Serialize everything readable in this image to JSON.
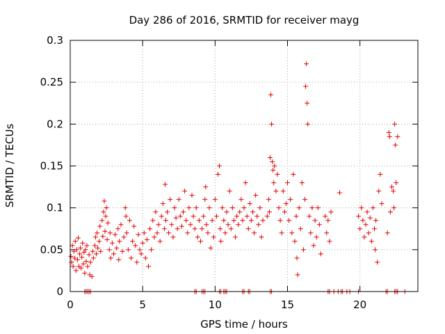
{
  "chart_data": {
    "type": "scatter",
    "title": "Day 286 of 2016, SRMTID for receiver mayg",
    "xlabel": "GPS time / hours",
    "ylabel": "SRMTID / TECUs",
    "xlim": [
      0,
      24
    ],
    "ylim": [
      0,
      0.3
    ],
    "xticks": [
      0,
      5,
      10,
      15,
      20
    ],
    "yticks": [
      0,
      0.05,
      0.1,
      0.15,
      0.2,
      0.25,
      0.3
    ],
    "ytick_labels": [
      "0",
      "0.05",
      "0.1",
      "0.15",
      "0.2",
      "0.25",
      "0.3"
    ],
    "grid": true,
    "marker": "+",
    "color": "#e00000",
    "series": [
      {
        "name": "SRMTID",
        "points": [
          [
            0.05,
            0.042
          ],
          [
            0.1,
            0.035
          ],
          [
            0.15,
            0.055
          ],
          [
            0.2,
            0.03
          ],
          [
            0.25,
            0.048
          ],
          [
            0.3,
            0.04
          ],
          [
            0.35,
            0.06
          ],
          [
            0.4,
            0.025
          ],
          [
            0.45,
            0.05
          ],
          [
            0.5,
            0.038
          ],
          [
            0.55,
            0.064
          ],
          [
            0.6,
            0.03
          ],
          [
            0.65,
            0.045
          ],
          [
            0.7,
            0.052
          ],
          [
            0.75,
            0.028
          ],
          [
            0.8,
            0.041
          ],
          [
            0.85,
            0.058
          ],
          [
            0.9,
            0.033
          ],
          [
            0.95,
            0.047
          ],
          [
            1.0,
            0.022
          ],
          [
            1.05,
            0.05
          ],
          [
            1.1,
            0.036
          ],
          [
            1.15,
            0.055
          ],
          [
            1.2,
            0.03
          ],
          [
            1.3,
            0.044
          ],
          [
            1.35,
            0.02
          ],
          [
            1.4,
            0.035
          ],
          [
            1.5,
            0.018
          ],
          [
            1.55,
            0.048
          ],
          [
            1.6,
            0.04
          ],
          [
            1.7,
            0.055
          ],
          [
            1.75,
            0.065
          ],
          [
            1.8,
            0.045
          ],
          [
            1.85,
            0.07
          ],
          [
            1.9,
            0.052
          ],
          [
            2.0,
            0.06
          ],
          [
            2.05,
            0.078
          ],
          [
            2.1,
            0.048
          ],
          [
            2.2,
            0.085
          ],
          [
            2.25,
            0.066
          ],
          [
            2.3,
            0.095
          ],
          [
            2.35,
            0.108
          ],
          [
            2.4,
            0.072
          ],
          [
            2.45,
            0.09
          ],
          [
            2.5,
            0.1
          ],
          [
            2.55,
            0.062
          ],
          [
            2.6,
            0.082
          ],
          [
            2.7,
            0.05
          ],
          [
            2.75,
            0.07
          ],
          [
            2.8,
            0.04
          ],
          [
            2.9,
            0.058
          ],
          [
            3.0,
            0.045
          ],
          [
            3.1,
            0.068
          ],
          [
            3.2,
            0.052
          ],
          [
            3.3,
            0.075
          ],
          [
            3.35,
            0.038
          ],
          [
            3.4,
            0.06
          ],
          [
            3.5,
            0.08
          ],
          [
            3.6,
            0.048
          ],
          [
            3.7,
            0.065
          ],
          [
            3.8,
            0.1
          ],
          [
            3.85,
            0.09
          ],
          [
            3.9,
            0.07
          ],
          [
            4.0,
            0.05
          ],
          [
            4.1,
            0.085
          ],
          [
            4.2,
            0.04
          ],
          [
            4.3,
            0.06
          ],
          [
            4.4,
            0.078
          ],
          [
            4.5,
            0.055
          ],
          [
            4.6,
            0.035
          ],
          [
            4.7,
            0.068
          ],
          [
            4.8,
            0.05
          ],
          [
            4.9,
            0.045
          ],
          [
            5.0,
            0.058
          ],
          [
            5.1,
            0.07
          ],
          [
            5.2,
            0.04
          ],
          [
            5.3,
            0.062
          ],
          [
            5.4,
            0.03
          ],
          [
            5.5,
            0.075
          ],
          [
            5.6,
            0.05
          ],
          [
            5.7,
            0.085
          ],
          [
            5.8,
            0.065
          ],
          [
            5.9,
            0.095
          ],
          [
            6.0,
            0.07
          ],
          [
            6.1,
            0.08
          ],
          [
            6.2,
            0.06
          ],
          [
            6.3,
            0.09
          ],
          [
            6.4,
            0.105
          ],
          [
            6.5,
            0.075
          ],
          [
            6.55,
            0.128
          ],
          [
            6.6,
            0.085
          ],
          [
            6.7,
            0.095
          ],
          [
            6.8,
            0.07
          ],
          [
            6.9,
            0.11
          ],
          [
            7.0,
            0.08
          ],
          [
            7.1,
            0.065
          ],
          [
            7.2,
            0.1
          ],
          [
            7.3,
            0.088
          ],
          [
            7.4,
            0.075
          ],
          [
            7.5,
            0.11
          ],
          [
            7.6,
            0.09
          ],
          [
            7.7,
            0.078
          ],
          [
            7.8,
            0.095
          ],
          [
            7.9,
            0.12
          ],
          [
            8.0,
            0.085
          ],
          [
            8.1,
            0.07
          ],
          [
            8.2,
            0.1
          ],
          [
            8.3,
            0.08
          ],
          [
            8.4,
            0.115
          ],
          [
            8.5,
            0.09
          ],
          [
            8.6,
            0.075
          ],
          [
            8.7,
            0.1
          ],
          [
            8.8,
            0.065
          ],
          [
            8.9,
            0.085
          ],
          [
            9.0,
            0.06
          ],
          [
            9.1,
            0.075
          ],
          [
            9.2,
            0.09
          ],
          [
            9.3,
            0.11
          ],
          [
            9.35,
            0.125
          ],
          [
            9.4,
            0.08
          ],
          [
            9.5,
            0.07
          ],
          [
            9.6,
            0.1
          ],
          [
            9.7,
            0.052
          ],
          [
            9.8,
            0.085
          ],
          [
            9.9,
            0.065
          ],
          [
            10.0,
            0.11
          ],
          [
            10.1,
            0.09
          ],
          [
            10.2,
            0.14
          ],
          [
            10.3,
            0.15
          ],
          [
            10.35,
            0.075
          ],
          [
            10.4,
            0.06
          ],
          [
            10.5,
            0.1
          ],
          [
            10.6,
            0.085
          ],
          [
            10.7,
            0.07
          ],
          [
            10.8,
            0.095
          ],
          [
            10.9,
            0.08
          ],
          [
            11.0,
            0.12
          ],
          [
            11.1,
            0.075
          ],
          [
            11.2,
            0.1
          ],
          [
            11.3,
            0.085
          ],
          [
            11.4,
            0.065
          ],
          [
            11.5,
            0.09
          ],
          [
            11.6,
            0.08
          ],
          [
            11.7,
            0.095
          ],
          [
            11.8,
            0.11
          ],
          [
            11.9,
            0.085
          ],
          [
            12.0,
            0.1
          ],
          [
            12.1,
            0.13
          ],
          [
            12.2,
            0.09
          ],
          [
            12.3,
            0.075
          ],
          [
            12.4,
            0.105
          ],
          [
            12.5,
            0.085
          ],
          [
            12.6,
            0.095
          ],
          [
            12.7,
            0.07
          ],
          [
            12.8,
            0.115
          ],
          [
            12.9,
            0.09
          ],
          [
            13.0,
            0.08
          ],
          [
            13.1,
            0.1
          ],
          [
            13.2,
            0.065
          ],
          [
            13.3,
            0.085
          ],
          [
            13.6,
            0.09
          ],
          [
            13.7,
            0.11
          ],
          [
            13.75,
            0.095
          ],
          [
            13.8,
            0.16
          ],
          [
            13.85,
            0.235
          ],
          [
            13.9,
            0.2
          ],
          [
            13.95,
            0.155
          ],
          [
            14.0,
            0.145
          ],
          [
            14.05,
            0.13
          ],
          [
            14.1,
            0.15
          ],
          [
            14.2,
            0.12
          ],
          [
            14.3,
            0.14
          ],
          [
            14.4,
            0.1
          ],
          [
            14.5,
            0.085
          ],
          [
            14.6,
            0.07
          ],
          [
            14.7,
            0.12
          ],
          [
            14.8,
            0.095
          ],
          [
            14.9,
            0.105
          ],
          [
            15.0,
            0.13
          ],
          [
            15.1,
            0.085
          ],
          [
            15.2,
            0.11
          ],
          [
            15.3,
            0.07
          ],
          [
            15.4,
            0.14
          ],
          [
            15.5,
            0.06
          ],
          [
            15.6,
            0.09
          ],
          [
            15.65,
            0.04
          ],
          [
            15.7,
            0.02
          ],
          [
            15.8,
            0.1
          ],
          [
            15.9,
            0.075
          ],
          [
            16.0,
            0.13
          ],
          [
            16.1,
            0.05
          ],
          [
            16.2,
            0.11
          ],
          [
            16.25,
            0.245
          ],
          [
            16.3,
            0.272
          ],
          [
            16.35,
            0.225
          ],
          [
            16.4,
            0.2
          ],
          [
            16.5,
            0.09
          ],
          [
            16.6,
            0.07
          ],
          [
            16.7,
            0.1
          ],
          [
            16.8,
            0.055
          ],
          [
            16.9,
            0.085
          ],
          [
            17.0,
            0.065
          ],
          [
            17.1,
            0.1
          ],
          [
            17.2,
            0.08
          ],
          [
            17.3,
            0.045
          ],
          [
            17.6,
            0.09
          ],
          [
            17.7,
            0.07
          ],
          [
            17.8,
            0.085
          ],
          [
            17.9,
            0.06
          ],
          [
            18.0,
            0.095
          ],
          [
            18.6,
            0.118
          ],
          [
            19.9,
            0.09
          ],
          [
            20.0,
            0.075
          ],
          [
            20.1,
            0.1
          ],
          [
            20.2,
            0.085
          ],
          [
            20.3,
            0.065
          ],
          [
            20.4,
            0.08
          ],
          [
            20.5,
            0.095
          ],
          [
            20.6,
            0.07
          ],
          [
            20.7,
            0.088
          ],
          [
            20.8,
            0.06
          ],
          [
            20.9,
            0.1
          ],
          [
            21.0,
            0.075
          ],
          [
            21.05,
            0.05
          ],
          [
            21.1,
            0.085
          ],
          [
            21.2,
            0.035
          ],
          [
            21.3,
            0.12
          ],
          [
            21.4,
            0.14
          ],
          [
            21.5,
            0.105
          ],
          [
            21.9,
            0.07
          ],
          [
            22.0,
            0.19
          ],
          [
            22.05,
            0.185
          ],
          [
            22.1,
            0.095
          ],
          [
            22.2,
            0.125
          ],
          [
            22.3,
            0.12
          ],
          [
            22.35,
            0.1
          ],
          [
            22.4,
            0.2
          ],
          [
            22.45,
            0.175
          ],
          [
            22.5,
            0.13
          ],
          [
            22.6,
            0.185
          ]
        ]
      }
    ],
    "zero_points_x": [
      1.0,
      1.1,
      1.2,
      1.3,
      1.4,
      8.6,
      8.7,
      9.1,
      9.2,
      9.3,
      10.3,
      10.4,
      10.6,
      10.7,
      10.8,
      11.9,
      12.0,
      12.3,
      12.4,
      13.8,
      13.9,
      17.8,
      17.9,
      18.2,
      18.5,
      18.7,
      18.8,
      19.1,
      19.3,
      19.9,
      21.8,
      21.9,
      22.4,
      22.5,
      22.6,
      23.1
    ]
  }
}
